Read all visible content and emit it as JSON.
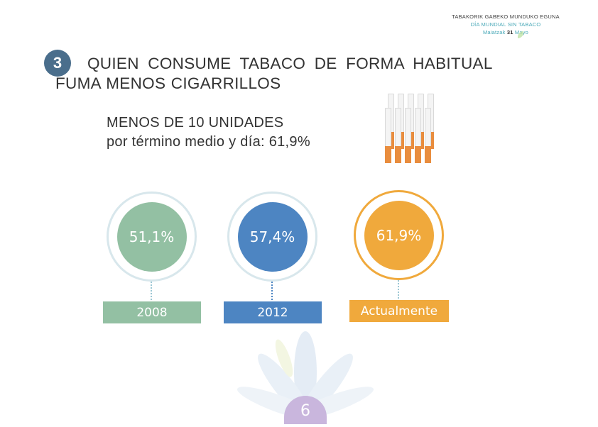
{
  "header": {
    "line1": "TABAKORIK GABEKO MUNDUKO EGUNA",
    "line2": "DÍA MUNDIAL SIN TABACO",
    "line3_left": "Maiatzak",
    "line3_day": "31",
    "line3_right": "Mayo"
  },
  "section": {
    "number": "3",
    "title_line1": "QUIEN CONSUME TABACO DE FORMA HABITUAL",
    "title_line2": "FUMA MENOS CIGARRILLOS"
  },
  "subtitle": {
    "line1": "MENOS DE 10 UNIDADES",
    "line2": "por término medio y día: 61,9%"
  },
  "stats": [
    {
      "value": "51,1%",
      "label": "2008",
      "color": "#93c0a3"
    },
    {
      "value": "57,4%",
      "label": "2012",
      "color": "#4d85c2"
    },
    {
      "value": "61,9%",
      "label": "Actualmente",
      "color": "#f0a93c"
    }
  ],
  "page_number": "6",
  "icons": {
    "cigarettes": "cigarettes-icon",
    "flower": "flower-icon"
  }
}
